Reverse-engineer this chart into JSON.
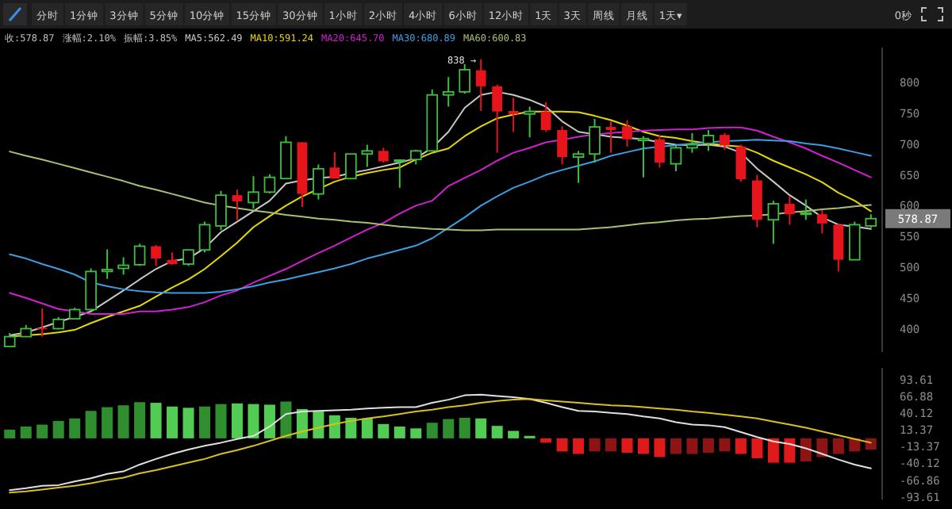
{
  "chart_data": [
    {
      "type": "other",
      "annotations": [
        "分时",
        "1分钟",
        "3分钟",
        "5分钟",
        "10分钟",
        "15分钟",
        "30分钟",
        "1小时",
        "2小时",
        "4小时",
        "6小时",
        "12小时",
        "1天",
        "3天",
        "周线",
        "月线",
        "1天▾",
        "0秒"
      ]
    },
    {
      "type": "candlestick",
      "categories": [
        null,
        null,
        null,
        null,
        null,
        null,
        null,
        null,
        null,
        null,
        null,
        null,
        null,
        null,
        null,
        null,
        null,
        null,
        null,
        null,
        null,
        null,
        null,
        null,
        null,
        null,
        null,
        null,
        null,
        null,
        null,
        null,
        null,
        null,
        null,
        null,
        null,
        null,
        null,
        null,
        null,
        null,
        null,
        null,
        null,
        null,
        null,
        null,
        null,
        null,
        null,
        null,
        null,
        null
      ],
      "ohlc": [
        [
          371,
          393,
          370,
          387
        ],
        [
          387,
          406,
          387,
          400
        ],
        [
          401,
          433,
          387,
          399
        ],
        [
          400,
          419,
          399,
          415
        ],
        [
          416,
          434,
          415,
          431
        ],
        [
          431,
          498,
          428,
          493
        ],
        [
          493,
          529,
          481,
          496
        ],
        [
          498,
          516,
          488,
          503
        ],
        [
          504,
          538,
          502,
          534
        ],
        [
          534,
          536,
          502,
          514
        ],
        [
          512,
          524,
          504,
          505
        ],
        [
          505,
          529,
          502,
          528
        ],
        [
          528,
          574,
          524,
          569
        ],
        [
          567,
          624,
          560,
          617
        ],
        [
          617,
          626,
          577,
          607
        ],
        [
          605,
          648,
          595,
          622
        ],
        [
          622,
          651,
          620,
          646
        ],
        [
          644,
          713,
          643,
          703
        ],
        [
          703,
          703,
          598,
          619
        ],
        [
          619,
          667,
          610,
          660
        ],
        [
          662,
          687,
          644,
          644
        ],
        [
          644,
          684,
          643,
          684
        ],
        [
          684,
          699,
          663,
          689
        ],
        [
          689,
          694,
          670,
          672
        ],
        [
          672,
          675,
          629,
          674
        ],
        [
          675,
          691,
          667,
          689
        ],
        [
          689,
          789,
          689,
          780
        ],
        [
          780,
          809,
          761,
          785
        ],
        [
          785,
          830,
          782,
          821
        ],
        [
          820,
          838,
          754,
          794
        ],
        [
          794,
          797,
          686,
          753
        ],
        [
          754,
          775,
          720,
          749
        ],
        [
          749,
          761,
          711,
          753
        ],
        [
          753,
          768,
          720,
          723
        ],
        [
          723,
          729,
          667,
          679
        ],
        [
          679,
          689,
          637,
          684
        ],
        [
          684,
          741,
          670,
          728
        ],
        [
          728,
          737,
          686,
          723
        ],
        [
          729,
          739,
          696,
          708
        ],
        [
          706,
          713,
          646,
          709
        ],
        [
          708,
          715,
          662,
          670
        ],
        [
          668,
          698,
          656,
          694
        ],
        [
          694,
          718,
          686,
          699
        ],
        [
          701,
          723,
          689,
          714
        ],
        [
          715,
          718,
          691,
          698
        ],
        [
          696,
          699,
          639,
          643
        ],
        [
          641,
          650,
          565,
          577
        ],
        [
          577,
          608,
          538,
          603
        ],
        [
          603,
          615,
          569,
          586
        ],
        [
          587,
          610,
          577,
          588
        ],
        [
          586,
          593,
          555,
          571
        ],
        [
          569,
          571,
          493,
          512
        ],
        [
          512,
          574,
          512,
          569
        ],
        [
          567,
          586,
          564,
          578.87
        ]
      ],
      "colors": [
        "#3fbf3f",
        "#3fbf3f",
        "#e8141c",
        "#3fbf3f",
        "#3fbf3f",
        "#3fbf3f",
        "#3fbf3f",
        "#3fbf3f",
        "#3fbf3f",
        "#e8141c",
        "#e8141c",
        "#3fbf3f",
        "#3fbf3f",
        "#3fbf3f",
        "#e8141c",
        "#3fbf3f",
        "#3fbf3f",
        "#3fbf3f",
        "#e8141c",
        "#3fbf3f",
        "#e8141c",
        "#3fbf3f",
        "#3fbf3f",
        "#e8141c",
        "#3fbf3f",
        "#3fbf3f",
        "#3fbf3f",
        "#3fbf3f",
        "#3fbf3f",
        "#e8141c",
        "#e8141c",
        "#e8141c",
        "#3fbf3f",
        "#e8141c",
        "#e8141c",
        "#3fbf3f",
        "#3fbf3f",
        "#e8141c",
        "#e8141c",
        "#3fbf3f",
        "#e8141c",
        "#3fbf3f",
        "#3fbf3f",
        "#3fbf3f",
        "#e8141c",
        "#e8141c",
        "#e8141c",
        "#3fbf3f",
        "#e8141c",
        "#3fbf3f",
        "#e8141c",
        "#e8141c",
        "#3fbf3f",
        "#3fbf3f"
      ],
      "series": [
        {
          "name": "MA5:562.49",
          "type": "line",
          "color": "#c8c8c8",
          "values": [
            389,
            394,
            402,
            411,
            419,
            428,
            445,
            462,
            480,
            497,
            510,
            514,
            531,
            557,
            574,
            591,
            608,
            636,
            641,
            645,
            647,
            653,
            658,
            664,
            670,
            677,
            694,
            720,
            759,
            780,
            785,
            780,
            772,
            761,
            737,
            720,
            716,
            712,
            710,
            708,
            703,
            699,
            698,
            699,
            696,
            686,
            660,
            639,
            617,
            600,
            581,
            569,
            566,
            562
          ]
        },
        {
          "name": "MA10:591.24",
          "type": "line",
          "color": "#e6d800",
          "values": [
            387,
            389,
            391,
            394,
            398,
            409,
            419,
            428,
            437,
            452,
            467,
            480,
            497,
            518,
            540,
            565,
            583,
            600,
            615,
            627,
            639,
            647,
            653,
            658,
            662,
            675,
            686,
            693,
            713,
            729,
            742,
            748,
            753,
            753,
            753,
            752,
            746,
            739,
            730,
            720,
            713,
            710,
            705,
            701,
            698,
            696,
            686,
            673,
            662,
            651,
            638,
            621,
            608,
            591
          ]
        },
        {
          "name": "MA20:645.70",
          "type": "line",
          "color": "#d21fd2",
          "values": [
            458,
            450,
            441,
            432,
            428,
            424,
            424,
            424,
            428,
            428,
            431,
            435,
            443,
            454,
            462,
            475,
            486,
            497,
            510,
            523,
            535,
            548,
            561,
            572,
            587,
            600,
            608,
            632,
            645,
            658,
            673,
            686,
            694,
            703,
            707,
            712,
            716,
            718,
            720,
            722,
            723,
            724,
            724,
            726,
            727,
            727,
            722,
            712,
            703,
            693,
            681,
            670,
            658,
            646
          ]
        },
        {
          "name": "MA30:680.89",
          "type": "line",
          "color": "#3c9ee0",
          "values": [
            521,
            514,
            505,
            497,
            488,
            475,
            469,
            464,
            461,
            459,
            458,
            458,
            458,
            460,
            464,
            469,
            475,
            480,
            486,
            492,
            498,
            505,
            514,
            521,
            528,
            535,
            547,
            564,
            581,
            600,
            615,
            629,
            639,
            650,
            658,
            665,
            672,
            681,
            687,
            693,
            696,
            698,
            701,
            703,
            705,
            706,
            707,
            706,
            705,
            701,
            698,
            693,
            687,
            681
          ]
        },
        {
          "name": "MA60:600.83",
          "type": "line",
          "color": "#a8c070",
          "values": [
            688,
            681,
            675,
            668,
            661,
            654,
            647,
            640,
            632,
            626,
            619,
            612,
            605,
            600,
            596,
            592,
            589,
            585,
            582,
            579,
            577,
            574,
            572,
            569,
            566,
            564,
            562,
            561,
            560,
            560,
            561,
            561,
            561,
            561,
            561,
            561,
            563,
            565,
            568,
            571,
            573,
            576,
            578,
            579,
            581,
            583,
            584,
            586,
            589,
            591,
            594,
            596,
            599,
            601
          ]
        }
      ],
      "ylim": [
        362,
        857
      ],
      "yticks": [
        400,
        450,
        500,
        550,
        600,
        650,
        700,
        750,
        800
      ],
      "tick_labels": "y",
      "legend": "top left",
      "annotations": [
        "收:578.87",
        "涨幅:2.10%",
        "振幅:3.85%",
        {
          "text": "838 →",
          "y": 838
        },
        "578.87"
      ]
    },
    {
      "type": "bar",
      "categories": [
        null,
        null,
        null,
        null,
        null,
        null,
        null,
        null,
        null,
        null,
        null,
        null,
        null,
        null,
        null,
        null,
        null,
        null,
        null,
        null,
        null,
        null,
        null,
        null,
        null,
        null,
        null,
        null,
        null,
        null,
        null,
        null,
        null,
        null,
        null,
        null,
        null,
        null,
        null,
        null,
        null,
        null,
        null,
        null,
        null,
        null,
        null,
        null,
        null,
        null,
        null,
        null,
        null,
        null
      ],
      "values": [
        14,
        19,
        22,
        28,
        32,
        44,
        50,
        53,
        58,
        57,
        51,
        49,
        51,
        55,
        56,
        55,
        54,
        59,
        47,
        44,
        37,
        33,
        32,
        23,
        19,
        16,
        25,
        31,
        33,
        32,
        20,
        12,
        4,
        -7,
        -21,
        -25,
        -21,
        -21,
        -23,
        -25,
        -30,
        -25,
        -25,
        -23,
        -21,
        -25,
        -32,
        -39,
        -39,
        -37,
        -30,
        -25,
        -21,
        -18
      ],
      "colors": [
        "#2f8f2f",
        "#2f8f2f",
        "#2f8f2f",
        "#2f8f2f",
        "#2f8f2f",
        "#2f8f2f",
        "#2f8f2f",
        "#2f8f2f",
        "#2f8f2f",
        "#52cc52",
        "#52cc52",
        "#52cc52",
        "#2f8f2f",
        "#2f8f2f",
        "#52cc52",
        "#52cc52",
        "#52cc52",
        "#2f8f2f",
        "#52cc52",
        "#52cc52",
        "#52cc52",
        "#52cc52",
        "#52cc52",
        "#52cc52",
        "#52cc52",
        "#52cc52",
        "#2f8f2f",
        "#2f8f2f",
        "#2f8f2f",
        "#52cc52",
        "#52cc52",
        "#52cc52",
        "#52cc52",
        "#e01a1a",
        "#e01a1a",
        "#e01a1a",
        "#8c1414",
        "#8c1414",
        "#e01a1a",
        "#e01a1a",
        "#e01a1a",
        "#8c1414",
        "#8c1414",
        "#8c1414",
        "#8c1414",
        "#e01a1a",
        "#e01a1a",
        "#e01a1a",
        "#e01a1a",
        "#8c1414",
        "#8c1414",
        "#8c1414",
        "#8c1414",
        "#8c1414"
      ],
      "series": [
        {
          "type": "line",
          "color": "#e0e0e0",
          "values": [
            -83,
            -80,
            -76,
            -75,
            -69,
            -64,
            -57,
            -53,
            -42,
            -33,
            -25,
            -18,
            -12,
            -7,
            -1,
            4,
            19,
            39,
            43,
            44,
            45,
            46,
            48,
            49,
            50,
            50,
            57,
            62,
            69,
            70,
            68,
            66,
            63,
            57,
            50,
            44,
            43,
            41,
            39,
            35,
            32,
            26,
            22,
            21,
            18,
            10,
            2,
            -5,
            -9,
            -16,
            -25,
            -34,
            -42,
            -48
          ]
        },
        {
          "type": "line",
          "color": "#d8c020",
          "values": [
            -87,
            -85,
            -82,
            -79,
            -76,
            -72,
            -67,
            -63,
            -56,
            -51,
            -45,
            -39,
            -33,
            -25,
            -19,
            -12,
            -4,
            4,
            11,
            17,
            23,
            28,
            32,
            35,
            39,
            43,
            46,
            50,
            53,
            57,
            60,
            62,
            63,
            61,
            59,
            57,
            55,
            53,
            52,
            50,
            48,
            46,
            43,
            41,
            38,
            35,
            32,
            27,
            22,
            17,
            11,
            5,
            -1,
            -7
          ]
        }
      ],
      "ylim": [
        -98,
        113
      ],
      "yticks": [
        93.61,
        66.88,
        40.12,
        13.37,
        -13.37,
        -40.12,
        -66.86,
        -93.61
      ],
      "tick_labels": "y"
    }
  ]
}
